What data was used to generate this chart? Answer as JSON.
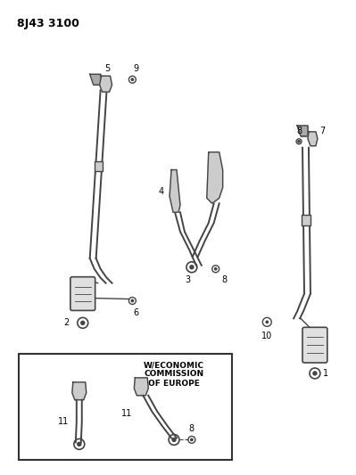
{
  "title": "8J43 3100",
  "background_color": "#ffffff",
  "line_color": "#444444",
  "label_color": "#000000",
  "box_label": "W/ECONOMIC\nCOMMISSION\nOF EUROPE",
  "figsize": [
    3.99,
    5.33
  ],
  "dpi": 100
}
